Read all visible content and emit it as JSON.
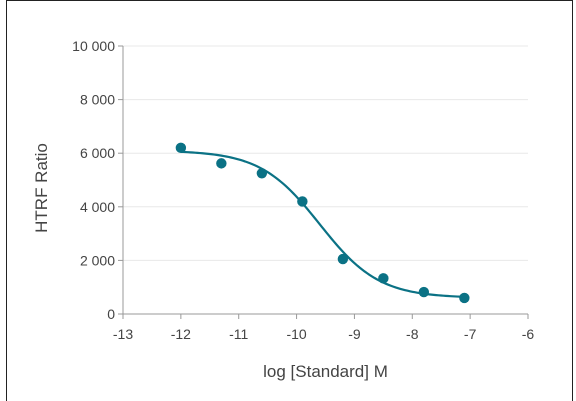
{
  "chart_data": {
    "type": "scatter",
    "title": "",
    "xlabel": "log [Standard] M",
    "ylabel": "HTRF Ratio",
    "xlim": [
      -13,
      -6
    ],
    "ylim": [
      0,
      10000
    ],
    "x_ticks": [
      -13,
      -12,
      -11,
      -10,
      -9,
      -8,
      -7,
      -6
    ],
    "x_tick_labels": [
      "-13",
      "-12",
      "-11",
      "-10",
      "-9",
      "-8",
      "-7",
      "-6"
    ],
    "y_ticks": [
      0,
      2000,
      4000,
      6000,
      8000,
      10000
    ],
    "y_tick_labels": [
      "0",
      "2 000",
      "4 000",
      "6 000",
      "8 000",
      "10 000"
    ],
    "grid": "horizontal",
    "series": [
      {
        "points": [
          {
            "x": -12.0,
            "y": 6200
          },
          {
            "x": -11.3,
            "y": 5620
          },
          {
            "x": -10.6,
            "y": 5250
          },
          {
            "x": -9.9,
            "y": 4200
          },
          {
            "x": -9.2,
            "y": 2050
          },
          {
            "x": -8.5,
            "y": 1330
          },
          {
            "x": -7.8,
            "y": 820
          },
          {
            "x": -7.1,
            "y": 600
          }
        ],
        "fit": {
          "type": "4PL",
          "top": 6100,
          "bottom": 600,
          "log_ec50": -9.6,
          "hill_slope": -0.85,
          "x_range": [
            -12.0,
            -7.05
          ]
        }
      }
    ],
    "colors": {
      "series": "#0b7285",
      "axis": "#999999",
      "grid": "#e8e8e8",
      "text": "#444444"
    }
  }
}
